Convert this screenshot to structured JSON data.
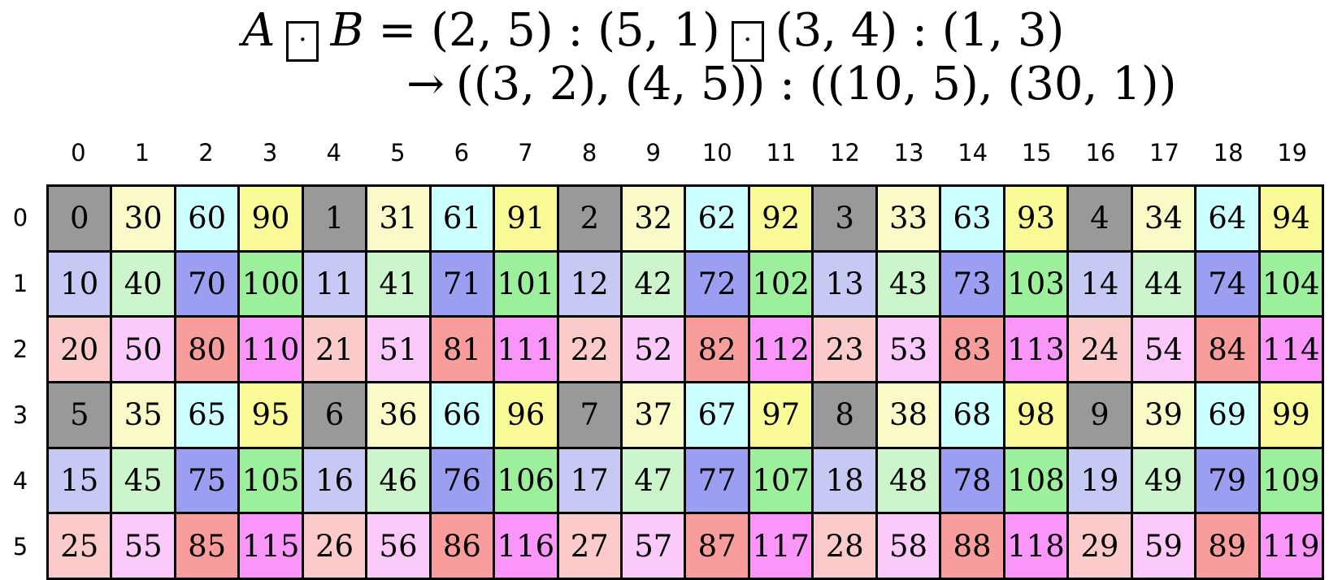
{
  "formula": {
    "var_a": "A",
    "var_b": "B",
    "eq_segment": "= (2, 5) : (5, 1)",
    "rhs_segment": "(3, 4) : (1, 3)",
    "boxdot_symbol": "·",
    "arrow_symbol": "→",
    "result_segment": "((3, 2), (4, 5)) : ((10, 5), (30, 1))"
  },
  "grid": {
    "col_headers": [
      "0",
      "1",
      "2",
      "3",
      "4",
      "5",
      "6",
      "7",
      "8",
      "9",
      "10",
      "11",
      "12",
      "13",
      "14",
      "15",
      "16",
      "17",
      "18",
      "19"
    ],
    "row_headers": [
      "0",
      "1",
      "2",
      "3",
      "4",
      "5"
    ],
    "rows": [
      [
        0,
        30,
        60,
        90,
        1,
        31,
        61,
        91,
        2,
        32,
        62,
        92,
        3,
        33,
        63,
        93,
        4,
        34,
        64,
        94
      ],
      [
        10,
        40,
        70,
        100,
        11,
        41,
        71,
        101,
        12,
        42,
        72,
        102,
        13,
        43,
        73,
        103,
        14,
        44,
        74,
        104
      ],
      [
        20,
        50,
        80,
        110,
        21,
        51,
        81,
        111,
        22,
        52,
        82,
        112,
        23,
        53,
        83,
        113,
        24,
        54,
        84,
        114
      ],
      [
        5,
        35,
        65,
        95,
        6,
        36,
        66,
        96,
        7,
        37,
        67,
        97,
        8,
        38,
        68,
        98,
        9,
        39,
        69,
        99
      ],
      [
        15,
        45,
        75,
        105,
        16,
        46,
        76,
        106,
        17,
        47,
        77,
        107,
        18,
        48,
        78,
        108,
        19,
        49,
        79,
        109
      ],
      [
        25,
        55,
        85,
        115,
        26,
        56,
        86,
        116,
        27,
        57,
        87,
        117,
        28,
        58,
        88,
        118,
        29,
        59,
        89,
        119
      ]
    ],
    "palette_by_rowmod3_colmod4": [
      [
        "#999999",
        "#FAFAC8",
        "#CCFFFF",
        "#FAFA96"
      ],
      [
        "#C6C9F4",
        "#CCF5CC",
        "#9C9EF2",
        "#9CF09C"
      ],
      [
        "#FBCACA",
        "#FBCAFB",
        "#F99C9C",
        "#FA96FA"
      ]
    ],
    "border_color": "#000000"
  }
}
